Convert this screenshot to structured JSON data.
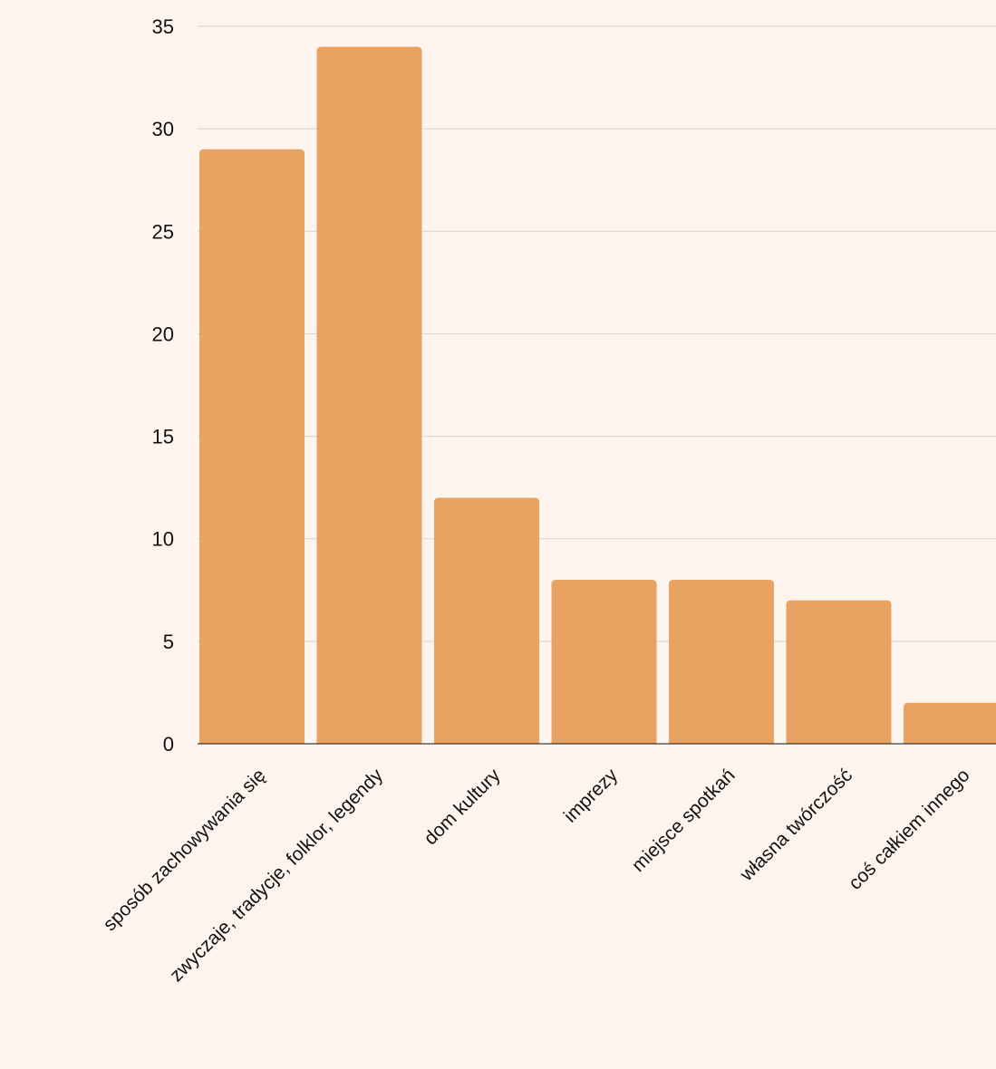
{
  "colors": {
    "background": "#fdf4ee",
    "bar": "#e8a262",
    "grid": "#d9d2cc",
    "axis": "#111111"
  },
  "chart_data": {
    "type": "bar",
    "categories": [
      "sposób zachowywania się",
      "zwyczaje, tradycje, folklor, legendy",
      "dom kultury",
      "imprezy",
      "miejsce spotkań",
      "własna twórczość",
      "coś całkiem innego"
    ],
    "values": [
      29,
      34,
      12,
      8,
      8,
      7,
      2
    ],
    "ylim": [
      0,
      35
    ],
    "yticks": [
      0,
      5,
      10,
      15,
      20,
      25,
      30,
      35
    ],
    "grid": true,
    "legend": "none",
    "title": "",
    "xlabel": "",
    "ylabel": ""
  }
}
